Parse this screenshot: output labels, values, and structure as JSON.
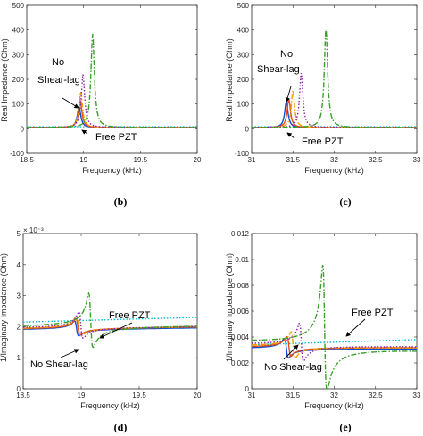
{
  "chart_data": [
    {
      "type": "line",
      "xlabel": "Frequency (kHz)",
      "ylabel": "Real Impedance (Ohm)",
      "xlim": [
        18.5,
        20
      ],
      "ylim": [
        -100,
        500
      ],
      "xticks": [
        "18.5",
        "19",
        "19.5",
        "20"
      ],
      "yticks": [
        "-100",
        "0",
        "100",
        "200",
        "300",
        "400",
        "500"
      ],
      "annotations": [
        "No",
        "Shear-lag",
        "Free PZT"
      ],
      "caption": "(b)",
      "series": [
        {
          "color": "#00bcd4",
          "style": "dotted",
          "x": [
            18.5,
            20
          ],
          "y": [
            8,
            8
          ]
        },
        {
          "color": "#0a4fd1",
          "style": "solid",
          "peak": {
            "x": 18.96,
            "y": 90
          },
          "baseline": 5
        },
        {
          "color": "#e64a19",
          "style": "solid",
          "peak": {
            "x": 18.97,
            "y": 115
          },
          "baseline": 5
        },
        {
          "color": "#f0a000",
          "style": "dashdot",
          "peak": {
            "x": 18.975,
            "y": 150
          },
          "baseline": 5
        },
        {
          "color": "#8e24aa",
          "style": "dotted",
          "peak": {
            "x": 18.995,
            "y": 220
          },
          "baseline": 5
        },
        {
          "color": "#3aa02a",
          "style": "dashdot",
          "peak": {
            "x": 19.08,
            "y": 385
          },
          "baseline": 5
        }
      ]
    },
    {
      "type": "line",
      "xlabel": "Frequency (kHz)",
      "ylabel": "Real Impedance (Ohm)",
      "xlim": [
        31,
        33
      ],
      "ylim": [
        -100,
        500
      ],
      "xticks": [
        "31",
        "31.5",
        "32",
        "32.5",
        "33"
      ],
      "yticks": [
        "-100",
        "0",
        "100",
        "200",
        "300",
        "400",
        "500"
      ],
      "annotations": [
        "No",
        "Shear-lag",
        "Free PZT"
      ],
      "caption": "(c)",
      "series": [
        {
          "color": "#00bcd4",
          "style": "dotted",
          "x": [
            31,
            33
          ],
          "y": [
            8,
            8
          ]
        },
        {
          "color": "#0a4fd1",
          "style": "solid",
          "peak": {
            "x": 31.42,
            "y": 110
          },
          "baseline": 5
        },
        {
          "color": "#e64a19",
          "style": "solid",
          "peak": {
            "x": 31.45,
            "y": 120
          },
          "baseline": 5
        },
        {
          "color": "#f0a000",
          "style": "dashdot",
          "peak": {
            "x": 31.5,
            "y": 155
          },
          "baseline": 5
        },
        {
          "color": "#8e24aa",
          "style": "dotted",
          "peak": {
            "x": 31.6,
            "y": 225
          },
          "baseline": 5
        },
        {
          "color": "#3aa02a",
          "style": "dashdot",
          "peak": {
            "x": 31.9,
            "y": 405
          },
          "baseline": 5
        }
      ]
    },
    {
      "type": "line",
      "xlabel": "Frequency (kHz)",
      "ylabel": "1/Imaginary Impedance (Ohm)",
      "xlim": [
        18.5,
        20
      ],
      "ylim": [
        0,
        5
      ],
      "exponent": "× 10⁻³",
      "xticks": [
        "18.5",
        "19",
        "19.5",
        "20"
      ],
      "yticks": [
        "0",
        "1",
        "2",
        "3",
        "4",
        "5"
      ],
      "annotations": [
        "Free PZT",
        "No Shear-lag"
      ],
      "caption": "(d)",
      "series": [
        {
          "color": "#00bcd4",
          "style": "dotted",
          "x": [
            18.5,
            20
          ],
          "y": [
            2.15,
            2.3
          ]
        },
        {
          "color": "#0a4fd1",
          "style": "solid",
          "res": {
            "x": 18.96,
            "hi": 2.2,
            "lo": 1.72
          },
          "pre": 1.9,
          "post": 1.97
        },
        {
          "color": "#e64a19",
          "style": "solid",
          "res": {
            "x": 18.97,
            "hi": 2.3,
            "lo": 1.8
          },
          "pre": 1.92,
          "post": 2.0
        },
        {
          "color": "#f0a000",
          "style": "dashdot",
          "res": {
            "x": 18.975,
            "hi": 2.4,
            "lo": 1.75
          },
          "pre": 1.93,
          "post": 2.01
        },
        {
          "color": "#8e24aa",
          "style": "dotted",
          "res": {
            "x": 18.995,
            "hi": 2.55,
            "lo": 1.72
          },
          "pre": 1.95,
          "post": 2.02
        },
        {
          "color": "#3aa02a",
          "style": "dashdot",
          "res": {
            "x": 19.08,
            "hi": 3.25,
            "lo": 1.55
          },
          "pre": 1.98,
          "post": 2.05
        }
      ]
    },
    {
      "type": "line",
      "xlabel": "Frequency (kHz)",
      "ylabel": "1/Imaginary Impedance (Ohm)",
      "xlim": [
        31,
        33
      ],
      "ylim": [
        0,
        0.012
      ],
      "xticks": [
        "31",
        "31.5",
        "32",
        "32.5",
        "33"
      ],
      "yticks": [
        "0",
        "0.002",
        "0.004",
        "0.006",
        "0.008",
        "0.01",
        "0.012"
      ],
      "annotations": [
        "Free PZT",
        "No Shear-lag"
      ],
      "caption": "(e)",
      "series": [
        {
          "color": "#00bcd4",
          "style": "dotted",
          "x": [
            31,
            33
          ],
          "y": [
            0.0034,
            0.0038
          ]
        },
        {
          "color": "#0a4fd1",
          "style": "solid",
          "res": {
            "x": 31.42,
            "hi": 0.0039,
            "lo": 0.0024
          },
          "pre": 0.0031,
          "post": 0.0031
        },
        {
          "color": "#e64a19",
          "style": "solid",
          "res": {
            "x": 31.45,
            "hi": 0.0041,
            "lo": 0.0026
          },
          "pre": 0.0032,
          "post": 0.0032
        },
        {
          "color": "#f0a000",
          "style": "dashdot",
          "res": {
            "x": 31.5,
            "hi": 0.0045,
            "lo": 0.0025
          },
          "pre": 0.0033,
          "post": 0.0032
        },
        {
          "color": "#8e24aa",
          "style": "dotted",
          "res": {
            "x": 31.6,
            "hi": 0.0053,
            "lo": 0.0024
          },
          "pre": 0.0034,
          "post": 0.0033
        },
        {
          "color": "#3aa02a",
          "style": "dashdot",
          "res": {
            "x": 31.88,
            "hi": 0.0108,
            "lo": 0.0015
          },
          "pre": 0.0035,
          "post": 0.0031
        }
      ]
    }
  ]
}
